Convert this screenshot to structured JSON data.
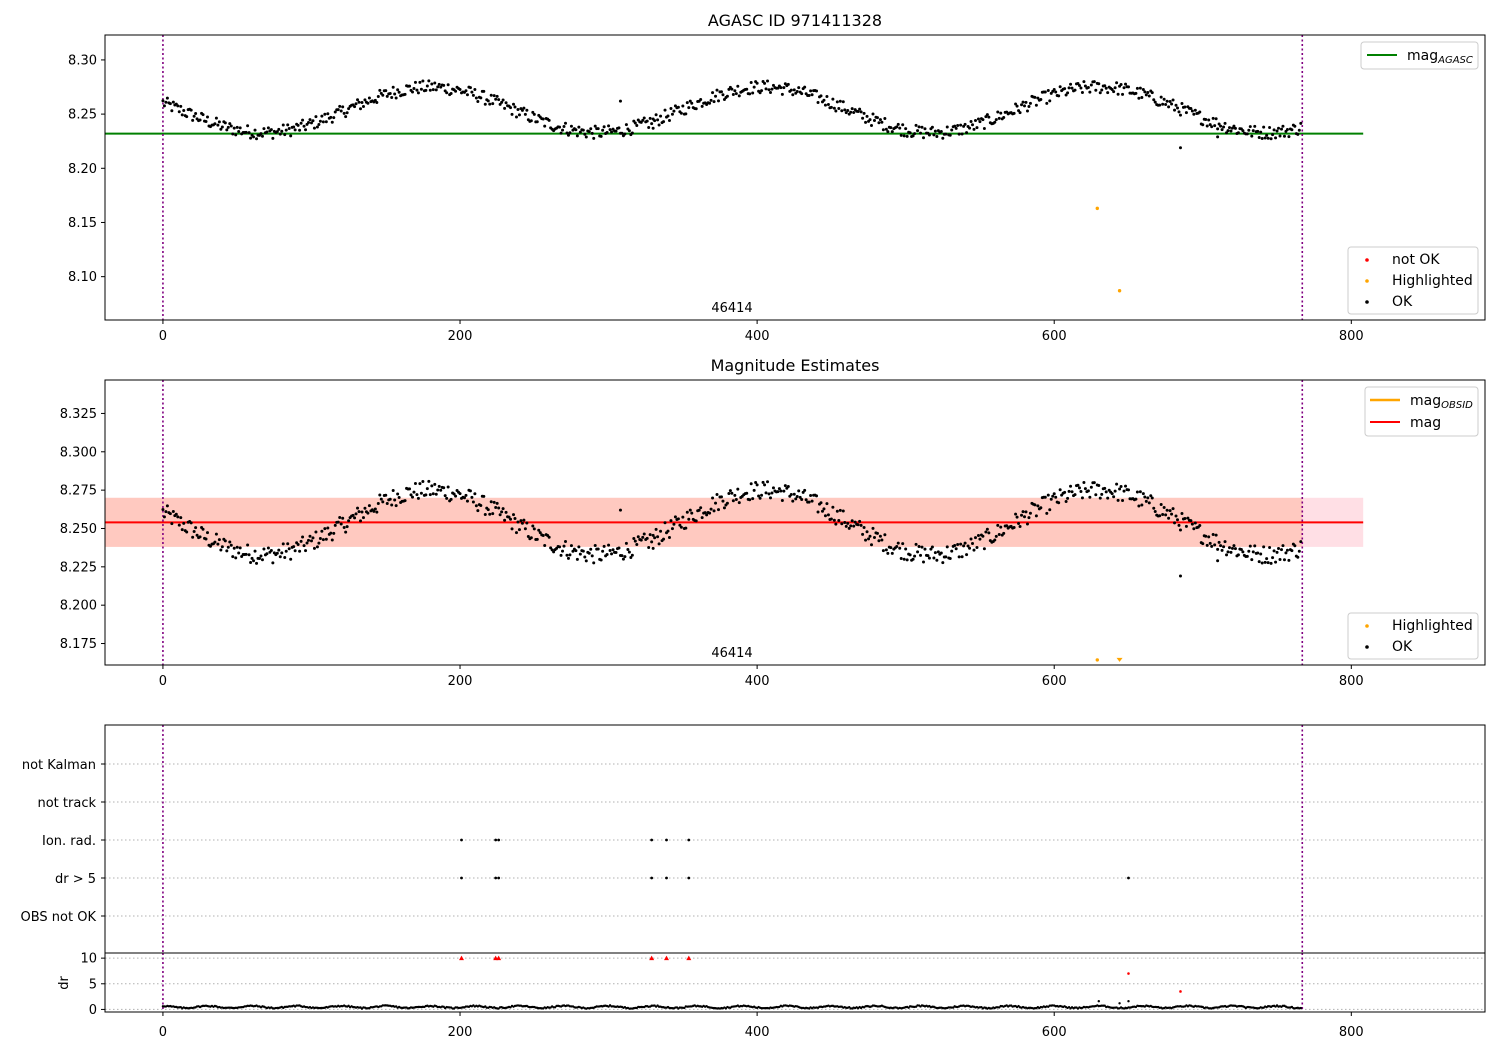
{
  "chart_data": [
    {
      "type": "scatter",
      "title": "AGASC ID 971411328",
      "xlabel": "",
      "ylabel": "",
      "xlim": [
        -39,
        890
      ],
      "ylim": [
        8.06,
        8.323
      ],
      "x_ticks": [
        "0",
        "200",
        "400",
        "600",
        "800"
      ],
      "y_ticks": [
        "8.10",
        "8.15",
        "8.20",
        "8.25",
        "8.30"
      ],
      "vlines_x": [
        0,
        767
      ],
      "annotation": "46414",
      "hlines": [
        {
          "name": "mag_AGASC",
          "y": 8.232,
          "x_range": [
            -39,
            808
          ],
          "color": "#008000"
        }
      ],
      "highlighted_points": [
        {
          "x": 629,
          "y": 8.163
        },
        {
          "x": 644,
          "y": 8.087
        }
      ],
      "outlier_points": [
        {
          "x": 308,
          "y": 8.262
        },
        {
          "x": 330,
          "y": 8.237
        },
        {
          "x": 685,
          "y": 8.219
        },
        {
          "x": 710,
          "y": 8.229
        }
      ],
      "ok_trend": {
        "base": 8.254,
        "amplitude": 0.021,
        "period": 225,
        "phase": -45,
        "n_points": 767
      },
      "legend_entries": [
        {
          "name": "mag",
          "subscript": "AGASC",
          "color": "#008000",
          "kind": "line"
        },
        {
          "name": "not OK",
          "color": "#ff0000",
          "kind": "dot"
        },
        {
          "name": "Highlighted",
          "color": "#ffa500",
          "kind": "dot"
        },
        {
          "name": "OK",
          "color": "#000000",
          "kind": "dot"
        }
      ]
    },
    {
      "type": "scatter",
      "title": "Magnitude Estimates",
      "xlabel": "",
      "ylabel": "",
      "xlim": [
        -39,
        890
      ],
      "ylim": [
        8.161,
        8.3468
      ],
      "x_ticks": [
        "0",
        "200",
        "400",
        "600",
        "800"
      ],
      "y_ticks": [
        "8.175",
        "8.200",
        "8.225",
        "8.250",
        "8.275",
        "8.300",
        "8.325"
      ],
      "vlines_x": [
        0,
        767
      ],
      "annotation": "46414",
      "hlines": [
        {
          "name": "mag",
          "y": 8.254,
          "x_range": [
            -39,
            808
          ],
          "color": "#ff0000"
        }
      ],
      "bands": [
        {
          "y_range": [
            8.238,
            8.27
          ],
          "x_range": [
            -39,
            808
          ],
          "color": "#ffc0cb"
        },
        {
          "y_range": [
            8.238,
            8.27
          ],
          "x_range": [
            -39,
            767
          ],
          "color": "#ffa07a"
        }
      ],
      "highlighted_points": [
        {
          "x": 629,
          "y": 8.163
        },
        {
          "x": 644,
          "y": 8.163
        }
      ],
      "outlier_points": [
        {
          "x": 308,
          "y": 8.262
        },
        {
          "x": 330,
          "y": 8.237
        },
        {
          "x": 685,
          "y": 8.219
        },
        {
          "x": 710,
          "y": 8.229
        }
      ],
      "ok_trend": {
        "base": 8.254,
        "amplitude": 0.021,
        "period": 225,
        "phase": -45,
        "n_points": 767
      },
      "legend_top": [
        {
          "name": "mag",
          "subscript": "OBSID",
          "color": "#ffa500",
          "kind": "line"
        },
        {
          "name": "mag",
          "color": "#ff0000",
          "kind": "line"
        }
      ],
      "legend_bottom": [
        {
          "name": "Highlighted",
          "color": "#ffa500",
          "kind": "dot"
        },
        {
          "name": "OK",
          "color": "#000000",
          "kind": "dot"
        }
      ]
    },
    {
      "type": "scatter",
      "title": "",
      "xlabel": "",
      "ylabel": "",
      "xlim": [
        -39,
        890
      ],
      "categories": [
        "not Kalman",
        "not track",
        "Ion. rad.",
        "dr > 5",
        "OBS not OK"
      ],
      "vlines_x": [
        0,
        767
      ],
      "flags": {
        "Ion. rad.": [
          201,
          224,
          226,
          329,
          339,
          354
        ],
        "dr > 5": [
          201,
          224,
          226,
          329,
          339,
          354,
          650
        ]
      }
    },
    {
      "type": "scatter",
      "title": "",
      "xlabel": "",
      "ylabel": "dr",
      "xlim": [
        -39,
        890
      ],
      "ylim": [
        -0.5,
        11
      ],
      "x_ticks": [
        "0",
        "200",
        "400",
        "600",
        "800"
      ],
      "y_ticks": [
        "0",
        "5",
        "10"
      ],
      "vlines_x": [
        0,
        767
      ],
      "red_points": [
        {
          "x": 201,
          "y": 10
        },
        {
          "x": 224,
          "y": 10
        },
        {
          "x": 226,
          "y": 10
        },
        {
          "x": 329,
          "y": 10
        },
        {
          "x": 339,
          "y": 10
        },
        {
          "x": 354,
          "y": 10
        },
        {
          "x": 650,
          "y": 7
        },
        {
          "x": 685,
          "y": 3.5
        }
      ],
      "black_bumps": [
        {
          "x": 630,
          "y": 1.6
        },
        {
          "x": 644,
          "y": 1.2
        },
        {
          "x": 650,
          "y": 1.6
        }
      ]
    }
  ]
}
